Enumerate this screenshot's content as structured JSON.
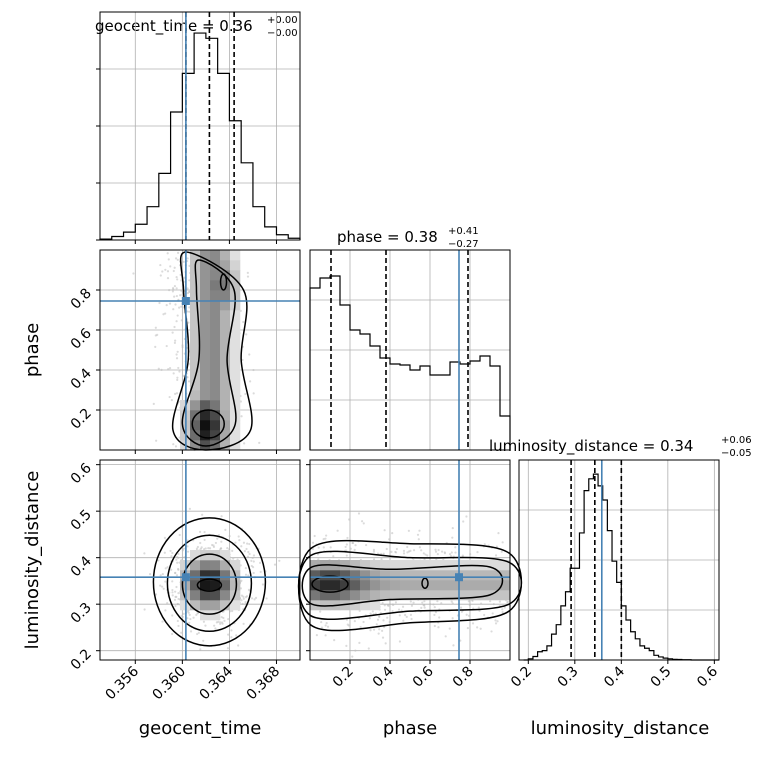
{
  "figure": {
    "type": "corner-plot"
  },
  "colors": {
    "truth": "#4682b4",
    "hist": "#000000",
    "grid": "#b0b0b0",
    "samples": "#bdbdbd"
  },
  "chart_data": [
    {
      "type": "bar",
      "panel": "geocent_time-1d",
      "title": {
        "label": "geocent_time",
        "eq": " = ",
        "median": "0.36",
        "upper": "+0.00",
        "lower": "−0.00"
      },
      "x": [
        0.3535,
        0.3545,
        0.3555,
        0.3565,
        0.3575,
        0.3585,
        0.3595,
        0.3605,
        0.3615,
        0.3625,
        0.3635,
        0.3645,
        0.3655,
        0.3665,
        0.3675,
        0.3685,
        0.3695
      ],
      "values": [
        0.5,
        2.0,
        4.5,
        9.0,
        19.0,
        38.0,
        73.0,
        95.0,
        118.0,
        115.0,
        95.0,
        68.0,
        44.0,
        19.0,
        7.5,
        3.0,
        1.0
      ],
      "xlim": [
        0.353,
        0.37
      ],
      "ylim": [
        0,
        130
      ],
      "quantiles": [
        0.3603,
        0.3623,
        0.3644
      ],
      "truth": 0.3603
    },
    {
      "type": "bar",
      "panel": "phase-1d",
      "title": {
        "label": "phase",
        "eq": " = ",
        "median": "0.38",
        "upper": "+0.41",
        "lower": "−0.27"
      },
      "x": [
        0.025,
        0.075,
        0.125,
        0.175,
        0.225,
        0.275,
        0.325,
        0.375,
        0.425,
        0.475,
        0.525,
        0.575,
        0.625,
        0.675,
        0.725,
        0.775,
        0.825,
        0.875,
        0.925,
        0.975
      ],
      "values": [
        162,
        172,
        174,
        145,
        120,
        116,
        104,
        92,
        86,
        85,
        80,
        84,
        75,
        75,
        88,
        86,
        89,
        94,
        84,
        34
      ],
      "xlim": [
        0.0,
        1.0
      ],
      "ylim": [
        0,
        200
      ],
      "quantiles": [
        0.105,
        0.38,
        0.79
      ],
      "truth": 0.745
    },
    {
      "type": "bar",
      "panel": "luminosity_distance-1d",
      "title": {
        "label": "luminosity_distance",
        "eq": " = ",
        "median": "0.34",
        "upper": "+0.06",
        "lower": "−0.05"
      },
      "x": [
        0.195,
        0.205,
        0.215,
        0.225,
        0.235,
        0.245,
        0.255,
        0.265,
        0.275,
        0.285,
        0.295,
        0.305,
        0.315,
        0.325,
        0.335,
        0.345,
        0.355,
        0.365,
        0.375,
        0.385,
        0.395,
        0.405,
        0.415,
        0.425,
        0.435,
        0.445,
        0.455,
        0.465,
        0.475,
        0.485,
        0.495,
        0.505,
        0.515,
        0.525,
        0.535,
        0.545,
        0.555,
        0.565,
        0.575,
        0.585,
        0.595,
        0.605
      ],
      "values": [
        0,
        0.5,
        1.5,
        3.5,
        4,
        6,
        11,
        15,
        23,
        29,
        39,
        39,
        54,
        72,
        77,
        79,
        74,
        68,
        55,
        42,
        33,
        23,
        17,
        12,
        9,
        6,
        5,
        4,
        2,
        1.3,
        0.8,
        0.5,
        0.3,
        0.2,
        0.1,
        0.1,
        0,
        0,
        0,
        0,
        0,
        0
      ],
      "xlim": [
        0.18,
        0.61
      ],
      "ylim": [
        0,
        85
      ],
      "quantiles": [
        0.292,
        0.343,
        0.4
      ],
      "truth": 0.358
    },
    {
      "type": "heatmap",
      "panel": "phase-vs-geocent_time",
      "x_param": "geocent_time",
      "y_param": "phase",
      "xlim": [
        0.353,
        0.37
      ],
      "ylim": [
        0.0,
        1.0
      ],
      "truth": [
        0.3603,
        0.745
      ]
    },
    {
      "type": "heatmap",
      "panel": "luminosity_distance-vs-geocent_time",
      "x_param": "geocent_time",
      "y_param": "luminosity_distance",
      "xlim": [
        0.353,
        0.37
      ],
      "ylim": [
        0.18,
        0.61
      ],
      "truth": [
        0.3603,
        0.358
      ]
    },
    {
      "type": "heatmap",
      "panel": "luminosity_distance-vs-phase",
      "x_param": "phase",
      "y_param": "luminosity_distance",
      "xlim": [
        0.0,
        1.0
      ],
      "ylim": [
        0.18,
        0.61
      ],
      "truth": [
        0.745,
        0.358
      ]
    }
  ],
  "axes": {
    "geocent_time": {
      "label": "geocent_time",
      "ticks": [
        0.356,
        0.36,
        0.364,
        0.368
      ],
      "tick_labels": [
        "0.356",
        "0.360",
        "0.364",
        "0.368"
      ]
    },
    "phase_x": {
      "label": "phase",
      "ticks": [
        0.2,
        0.4,
        0.6,
        0.8
      ],
      "tick_labels": [
        "0.2",
        "0.4",
        "0.6",
        "0.8"
      ]
    },
    "phase_y": {
      "label": "phase",
      "ticks": [
        0.2,
        0.4,
        0.6,
        0.8
      ],
      "tick_labels": [
        "0.2",
        "0.4",
        "0.6",
        "0.8"
      ]
    },
    "luminosity_distance_x": {
      "label": "luminosity_distance",
      "ticks": [
        0.2,
        0.3,
        0.4,
        0.5,
        0.6
      ],
      "tick_labels": [
        "0.2",
        "0.3",
        "0.4",
        "0.5",
        "0.6"
      ]
    },
    "luminosity_distance_y": {
      "label": "luminosity_distance",
      "ticks": [
        0.2,
        0.3,
        0.4,
        0.5,
        0.6
      ],
      "tick_labels": [
        "0.2",
        "0.3",
        "0.4",
        "0.5",
        "0.6"
      ]
    }
  }
}
